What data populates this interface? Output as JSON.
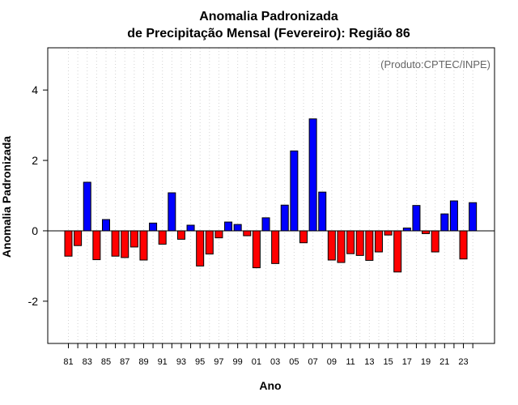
{
  "chart_data": {
    "type": "bar",
    "title": "Anomalia Padronizada",
    "subtitle": "de Precipitação Mensal (Fevereiro): Região 86",
    "xlabel": "Ano",
    "ylabel": "Anomalia Padronizada",
    "annotation": "(Produto:CPTEC/INPE)",
    "ylim": [
      -3.2,
      5.2
    ],
    "yticks": [
      -2,
      0,
      2,
      4
    ],
    "grid": "vertical dotted",
    "years": [
      "81",
      "82",
      "83",
      "84",
      "85",
      "86",
      "87",
      "88",
      "89",
      "90",
      "91",
      "92",
      "93",
      "94",
      "95",
      "96",
      "97",
      "98",
      "99",
      "00",
      "01",
      "02",
      "03",
      "04",
      "05",
      "06",
      "07",
      "08",
      "09",
      "10",
      "11",
      "12",
      "13",
      "14",
      "15",
      "16",
      "17",
      "18",
      "19",
      "20",
      "21",
      "22",
      "23",
      "24"
    ],
    "tick_labels": [
      "81",
      "83",
      "85",
      "87",
      "89",
      "91",
      "93",
      "95",
      "97",
      "99",
      "01",
      "03",
      "05",
      "07",
      "09",
      "11",
      "13",
      "15",
      "17",
      "19",
      "21",
      "23"
    ],
    "values": [
      -0.72,
      -0.42,
      1.38,
      -0.82,
      0.32,
      -0.72,
      -0.76,
      -0.46,
      -0.83,
      0.22,
      -0.38,
      1.08,
      -0.24,
      0.16,
      -1.0,
      -0.66,
      -0.2,
      0.25,
      0.18,
      -0.14,
      -1.05,
      0.37,
      -0.93,
      0.73,
      2.27,
      -0.34,
      3.18,
      1.1,
      -0.83,
      -0.9,
      -0.65,
      -0.7,
      -0.84,
      -0.6,
      -0.12,
      -1.17,
      0.08,
      0.72,
      -0.08,
      -0.6,
      0.48,
      0.85,
      -0.8,
      0.8
    ],
    "colors": {
      "positive": "#0000ff",
      "negative": "#ff0000",
      "outline": "#000000",
      "grid": "#d3d3d3"
    }
  }
}
